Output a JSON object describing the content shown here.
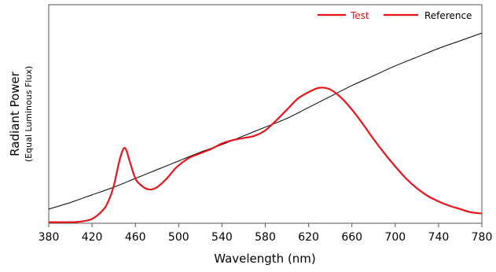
{
  "chart_data": {
    "type": "line",
    "title": "",
    "xlabel": "Wavelength (nm)",
    "ylabel": "Radiant Power",
    "ylabel_sub": "(Equal Luminous Flux)",
    "xlim": [
      380,
      780
    ],
    "ylim": [
      0,
      1.0
    ],
    "x_ticks": [
      "380",
      "420",
      "460",
      "500",
      "540",
      "580",
      "620",
      "660",
      "700",
      "740",
      "780"
    ],
    "y_ticks_shown": false,
    "grid": false,
    "legend_position": "top-right",
    "colors": {
      "test": "#e8141c",
      "reference": "#000000"
    },
    "series": [
      {
        "name": "Test",
        "x": [
          380,
          400,
          410,
          420,
          430,
          435,
          440,
          445,
          448,
          450,
          452,
          455,
          460,
          465,
          470,
          475,
          480,
          485,
          490,
          495,
          500,
          510,
          520,
          530,
          540,
          550,
          560,
          570,
          580,
          590,
          600,
          610,
          620,
          630,
          640,
          650,
          660,
          670,
          680,
          690,
          700,
          710,
          720,
          730,
          740,
          750,
          760,
          770,
          780
        ],
        "y": [
          0.005,
          0.005,
          0.008,
          0.02,
          0.06,
          0.1,
          0.17,
          0.28,
          0.33,
          0.345,
          0.33,
          0.28,
          0.205,
          0.175,
          0.158,
          0.155,
          0.165,
          0.185,
          0.21,
          0.24,
          0.265,
          0.3,
          0.32,
          0.34,
          0.365,
          0.38,
          0.39,
          0.4,
          0.425,
          0.47,
          0.52,
          0.57,
          0.6,
          0.62,
          0.612,
          0.575,
          0.52,
          0.455,
          0.385,
          0.32,
          0.26,
          0.205,
          0.16,
          0.125,
          0.1,
          0.08,
          0.065,
          0.05,
          0.045
        ]
      },
      {
        "name": "Reference",
        "x": [
          380,
          400,
          420,
          440,
          460,
          480,
          500,
          520,
          540,
          560,
          580,
          600,
          620,
          640,
          660,
          680,
          700,
          720,
          740,
          760,
          780
        ],
        "y": [
          0.065,
          0.095,
          0.13,
          0.165,
          0.205,
          0.245,
          0.285,
          0.325,
          0.36,
          0.4,
          0.44,
          0.48,
          0.53,
          0.58,
          0.63,
          0.675,
          0.72,
          0.76,
          0.8,
          0.835,
          0.87
        ]
      }
    ]
  }
}
